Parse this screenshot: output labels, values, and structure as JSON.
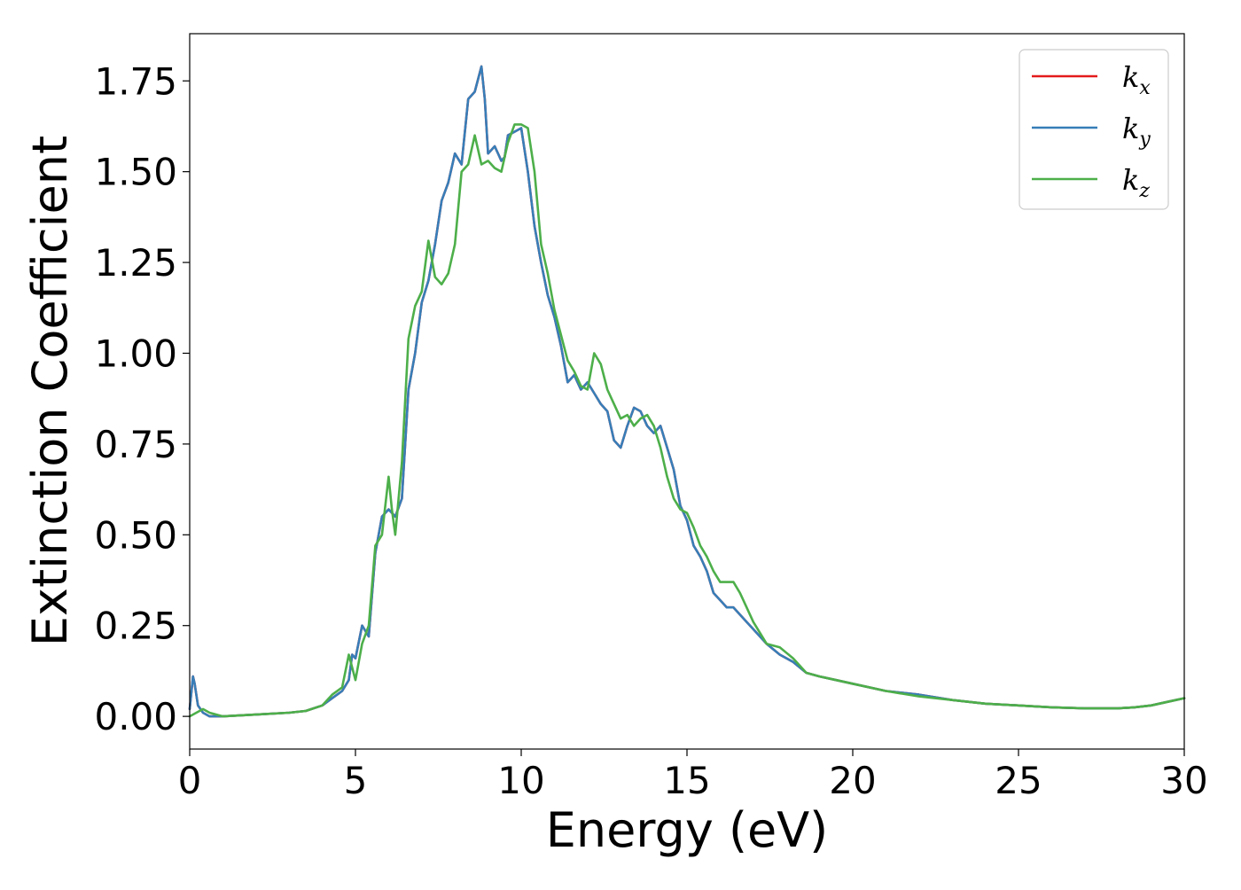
{
  "chart_data": {
    "type": "line",
    "xlabel": "Energy (eV)",
    "ylabel": "Extinction Coefficient",
    "xlim": [
      0,
      30
    ],
    "ylim": [
      -0.09,
      1.88
    ],
    "xticks": [
      0,
      5,
      10,
      15,
      20,
      25,
      30
    ],
    "xtick_labels": [
      "0",
      "5",
      "10",
      "15",
      "20",
      "25",
      "30"
    ],
    "yticks": [
      0.0,
      0.25,
      0.5,
      0.75,
      1.0,
      1.25,
      1.5,
      1.75
    ],
    "ytick_labels": [
      "0.00",
      "0.25",
      "0.50",
      "0.75",
      "1.00",
      "1.25",
      "1.50",
      "1.75"
    ],
    "grid": false,
    "legend_position": "top-right",
    "series": [
      {
        "name": "k_x",
        "label_main": "k",
        "label_sub": "x",
        "color": "#e41a1c",
        "x": [
          0,
          0.1,
          0.15,
          0.25,
          0.4,
          0.6,
          1.0,
          2.0,
          3.0,
          3.5,
          4.0,
          4.3,
          4.6,
          4.8,
          4.9,
          5.0,
          5.2,
          5.4,
          5.6,
          5.8,
          6.0,
          6.2,
          6.4,
          6.6,
          6.8,
          7.0,
          7.2,
          7.4,
          7.6,
          7.8,
          8.0,
          8.2,
          8.4,
          8.6,
          8.8,
          8.9,
          9.0,
          9.2,
          9.4,
          9.5,
          9.6,
          9.8,
          10.0,
          10.2,
          10.4,
          10.6,
          10.8,
          11.0,
          11.2,
          11.4,
          11.6,
          11.8,
          12.0,
          12.2,
          12.4,
          12.6,
          12.8,
          13.0,
          13.2,
          13.4,
          13.6,
          13.8,
          14.0,
          14.2,
          14.4,
          14.6,
          14.8,
          15.0,
          15.2,
          15.4,
          15.6,
          15.8,
          16.0,
          16.2,
          16.4,
          16.6,
          16.8,
          17.0,
          17.4,
          17.8,
          18.2,
          18.6,
          19.0,
          19.5,
          20.0,
          21.0,
          22.0,
          23.0,
          24.0,
          25.0,
          26.0,
          27.0,
          28.0,
          28.5,
          29.0,
          29.5,
          30.0
        ],
        "y": [
          0.02,
          0.11,
          0.09,
          0.03,
          0.01,
          0.0,
          0.0,
          0.005,
          0.01,
          0.015,
          0.03,
          0.05,
          0.07,
          0.1,
          0.17,
          0.16,
          0.25,
          0.22,
          0.45,
          0.55,
          0.57,
          0.55,
          0.6,
          0.9,
          1.0,
          1.14,
          1.2,
          1.3,
          1.42,
          1.47,
          1.55,
          1.52,
          1.7,
          1.72,
          1.79,
          1.7,
          1.55,
          1.57,
          1.53,
          1.54,
          1.6,
          1.61,
          1.62,
          1.5,
          1.35,
          1.25,
          1.16,
          1.1,
          1.02,
          0.92,
          0.94,
          0.9,
          0.92,
          0.89,
          0.86,
          0.84,
          0.76,
          0.74,
          0.8,
          0.85,
          0.84,
          0.8,
          0.78,
          0.8,
          0.74,
          0.68,
          0.58,
          0.54,
          0.47,
          0.44,
          0.4,
          0.34,
          0.32,
          0.3,
          0.3,
          0.28,
          0.26,
          0.24,
          0.2,
          0.17,
          0.15,
          0.12,
          0.11,
          0.1,
          0.09,
          0.07,
          0.06,
          0.045,
          0.035,
          0.03,
          0.025,
          0.022,
          0.022,
          0.025,
          0.03,
          0.04,
          0.05
        ]
      },
      {
        "name": "k_y",
        "label_main": "k",
        "label_sub": "y",
        "color": "#377eb8",
        "x": [
          0,
          0.1,
          0.15,
          0.25,
          0.4,
          0.6,
          1.0,
          2.0,
          3.0,
          3.5,
          4.0,
          4.3,
          4.6,
          4.8,
          4.9,
          5.0,
          5.2,
          5.4,
          5.6,
          5.8,
          6.0,
          6.2,
          6.4,
          6.6,
          6.8,
          7.0,
          7.2,
          7.4,
          7.6,
          7.8,
          8.0,
          8.2,
          8.4,
          8.6,
          8.8,
          8.9,
          9.0,
          9.2,
          9.4,
          9.5,
          9.6,
          9.8,
          10.0,
          10.2,
          10.4,
          10.6,
          10.8,
          11.0,
          11.2,
          11.4,
          11.6,
          11.8,
          12.0,
          12.2,
          12.4,
          12.6,
          12.8,
          13.0,
          13.2,
          13.4,
          13.6,
          13.8,
          14.0,
          14.2,
          14.4,
          14.6,
          14.8,
          15.0,
          15.2,
          15.4,
          15.6,
          15.8,
          16.0,
          16.2,
          16.4,
          16.6,
          16.8,
          17.0,
          17.4,
          17.8,
          18.2,
          18.6,
          19.0,
          19.5,
          20.0,
          21.0,
          22.0,
          23.0,
          24.0,
          25.0,
          26.0,
          27.0,
          28.0,
          28.5,
          29.0,
          29.5,
          30.0
        ],
        "y": [
          0.02,
          0.11,
          0.09,
          0.03,
          0.01,
          0.0,
          0.0,
          0.005,
          0.01,
          0.015,
          0.03,
          0.05,
          0.07,
          0.1,
          0.17,
          0.16,
          0.25,
          0.22,
          0.45,
          0.55,
          0.57,
          0.55,
          0.6,
          0.9,
          1.0,
          1.14,
          1.2,
          1.3,
          1.42,
          1.47,
          1.55,
          1.52,
          1.7,
          1.72,
          1.79,
          1.7,
          1.55,
          1.57,
          1.53,
          1.54,
          1.6,
          1.61,
          1.62,
          1.5,
          1.35,
          1.25,
          1.16,
          1.1,
          1.02,
          0.92,
          0.94,
          0.9,
          0.92,
          0.89,
          0.86,
          0.84,
          0.76,
          0.74,
          0.8,
          0.85,
          0.84,
          0.8,
          0.78,
          0.8,
          0.74,
          0.68,
          0.58,
          0.54,
          0.47,
          0.44,
          0.4,
          0.34,
          0.32,
          0.3,
          0.3,
          0.28,
          0.26,
          0.24,
          0.2,
          0.17,
          0.15,
          0.12,
          0.11,
          0.1,
          0.09,
          0.07,
          0.06,
          0.045,
          0.035,
          0.03,
          0.025,
          0.022,
          0.022,
          0.025,
          0.03,
          0.04,
          0.05
        ]
      },
      {
        "name": "k_z",
        "label_main": "k",
        "label_sub": "z",
        "color": "#4daf4a",
        "x": [
          0,
          0.2,
          0.4,
          0.6,
          1.0,
          2.0,
          3.0,
          3.5,
          4.0,
          4.3,
          4.6,
          4.8,
          5.0,
          5.2,
          5.4,
          5.6,
          5.8,
          6.0,
          6.1,
          6.2,
          6.4,
          6.6,
          6.8,
          7.0,
          7.2,
          7.4,
          7.6,
          7.8,
          8.0,
          8.2,
          8.4,
          8.6,
          8.8,
          9.0,
          9.2,
          9.4,
          9.6,
          9.8,
          10.0,
          10.2,
          10.4,
          10.6,
          10.8,
          11.0,
          11.2,
          11.4,
          11.6,
          11.8,
          12.0,
          12.2,
          12.4,
          12.6,
          12.8,
          13.0,
          13.2,
          13.4,
          13.6,
          13.8,
          14.0,
          14.2,
          14.4,
          14.6,
          14.8,
          15.0,
          15.2,
          15.4,
          15.6,
          15.8,
          16.0,
          16.2,
          16.4,
          16.6,
          16.8,
          17.0,
          17.4,
          17.8,
          18.2,
          18.6,
          19.0,
          19.5,
          20.0,
          21.0,
          22.0,
          23.0,
          24.0,
          25.0,
          26.0,
          27.0,
          28.0,
          28.5,
          29.0,
          29.5,
          30.0
        ],
        "y": [
          0.0,
          0.01,
          0.02,
          0.01,
          0.0,
          0.005,
          0.01,
          0.015,
          0.03,
          0.06,
          0.08,
          0.17,
          0.1,
          0.2,
          0.25,
          0.47,
          0.5,
          0.66,
          0.57,
          0.5,
          0.7,
          1.04,
          1.13,
          1.17,
          1.31,
          1.21,
          1.19,
          1.22,
          1.3,
          1.5,
          1.52,
          1.6,
          1.52,
          1.53,
          1.51,
          1.5,
          1.58,
          1.63,
          1.63,
          1.62,
          1.5,
          1.3,
          1.22,
          1.12,
          1.05,
          0.98,
          0.95,
          0.91,
          0.9,
          1.0,
          0.97,
          0.9,
          0.86,
          0.82,
          0.83,
          0.8,
          0.82,
          0.83,
          0.8,
          0.74,
          0.66,
          0.6,
          0.57,
          0.56,
          0.52,
          0.47,
          0.44,
          0.4,
          0.37,
          0.37,
          0.37,
          0.34,
          0.3,
          0.26,
          0.2,
          0.19,
          0.16,
          0.12,
          0.11,
          0.1,
          0.09,
          0.07,
          0.055,
          0.045,
          0.035,
          0.03,
          0.025,
          0.022,
          0.022,
          0.025,
          0.03,
          0.04,
          0.05
        ]
      }
    ]
  }
}
